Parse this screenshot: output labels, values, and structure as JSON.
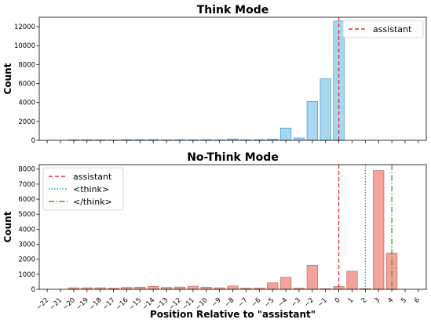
{
  "chart_data": [
    {
      "type": "bar",
      "title": "Think Mode",
      "xlabel": "",
      "ylabel": "Count",
      "x": [
        -22,
        -21,
        -20,
        -19,
        -18,
        -17,
        -16,
        -15,
        -14,
        -13,
        -12,
        -11,
        -10,
        -9,
        -8,
        -7,
        -6,
        -5,
        -4,
        -3,
        -2,
        -1,
        0,
        1,
        2,
        3,
        4,
        5,
        6
      ],
      "values": [
        0,
        0,
        60,
        60,
        50,
        40,
        70,
        80,
        90,
        50,
        60,
        50,
        70,
        50,
        150,
        60,
        70,
        130,
        1300,
        250,
        4100,
        6500,
        12600,
        0,
        0,
        0,
        0,
        0,
        0
      ],
      "ylim": [
        0,
        13000
      ],
      "yticks": [
        0,
        2000,
        4000,
        6000,
        8000,
        10000,
        12000
      ],
      "bar_color": "#a6d8ef",
      "bar_edge": "#4a90c8",
      "vlines": [
        {
          "x": 0,
          "label": "assistant",
          "color": "#e03030",
          "dash": "dashed"
        }
      ],
      "legend": {
        "position": "upper-right",
        "entries": [
          "assistant"
        ]
      }
    },
    {
      "type": "bar",
      "title": "No-Think Mode",
      "xlabel": "Position Relative to \"assistant\"",
      "ylabel": "Count",
      "x": [
        -22,
        -21,
        -20,
        -19,
        -18,
        -17,
        -16,
        -15,
        -14,
        -13,
        -12,
        -11,
        -10,
        -9,
        -8,
        -7,
        -6,
        -5,
        -4,
        -3,
        -2,
        -1,
        0,
        1,
        2,
        3,
        4,
        5,
        6
      ],
      "values": [
        0,
        0,
        100,
        100,
        100,
        80,
        120,
        140,
        190,
        120,
        150,
        200,
        140,
        100,
        220,
        80,
        80,
        430,
        800,
        80,
        1600,
        40,
        180,
        1200,
        40,
        7900,
        2400,
        0,
        0
      ],
      "ylim": [
        0,
        8300
      ],
      "yticks": [
        0,
        1000,
        2000,
        3000,
        4000,
        5000,
        6000,
        7000,
        8000
      ],
      "xtick_labels": [
        "−22",
        "−21",
        "−20",
        "−19",
        "−18",
        "−17",
        "−16",
        "−15",
        "−14",
        "−13",
        "−12",
        "−11",
        "−10",
        "−9",
        "−8",
        "−7",
        "−6",
        "−5",
        "−4",
        "−3",
        "−2",
        "−1",
        "0",
        "1",
        "2",
        "3",
        "4",
        "5",
        "6"
      ],
      "bar_color": "#f4a49a",
      "bar_edge": "#c06a60",
      "vlines": [
        {
          "x": 0,
          "label": "assistant",
          "color": "#e03030",
          "dash": "dashed"
        },
        {
          "x": 2,
          "label": "<think>",
          "color": "#2a8fbf",
          "dash": "dotted"
        },
        {
          "x": 4,
          "label": "</think>",
          "color": "#2ca02c",
          "dash": "dashdot"
        }
      ],
      "legend": {
        "position": "upper-left",
        "entries": [
          "assistant",
          "<think>",
          "</think>"
        ]
      }
    }
  ]
}
